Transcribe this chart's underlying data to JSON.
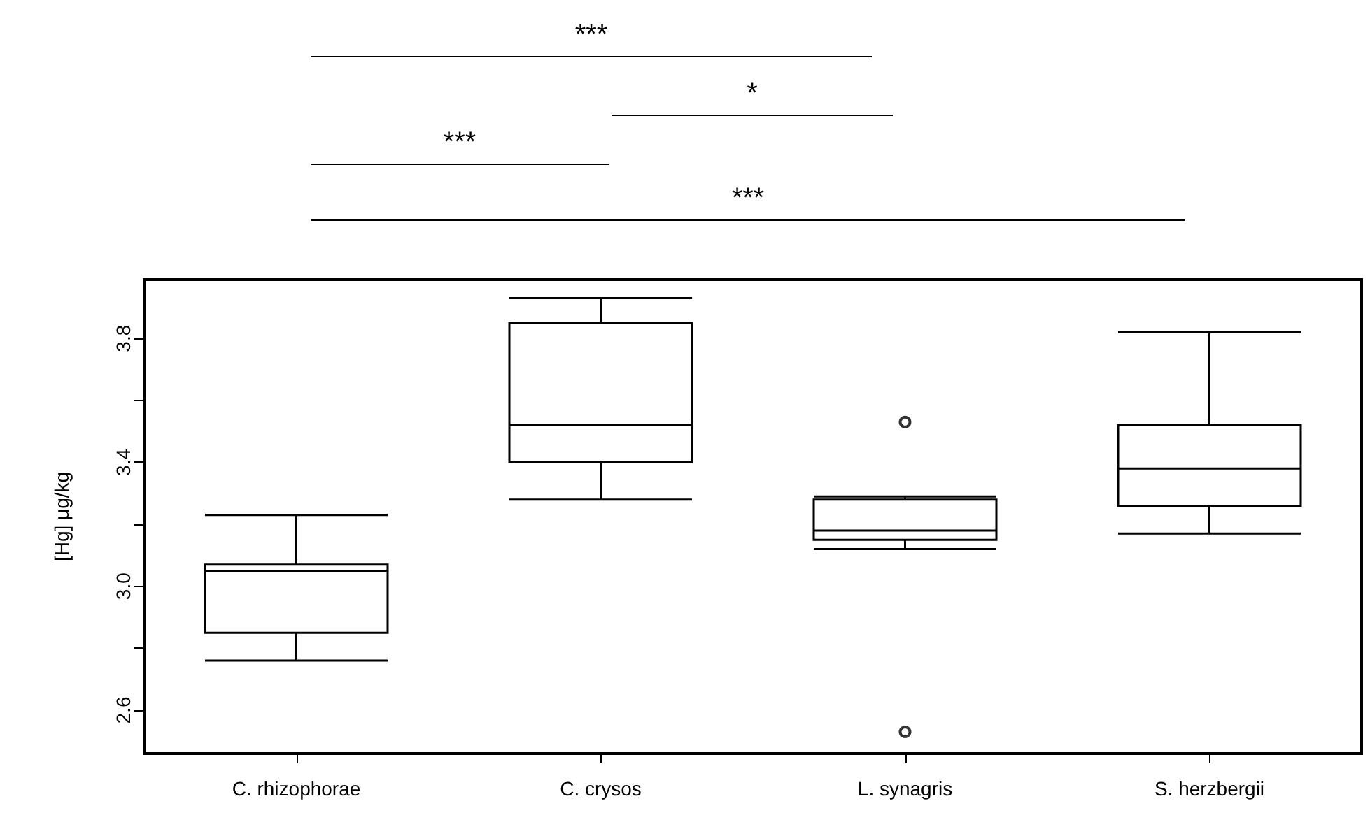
{
  "chart_data": {
    "type": "box",
    "ylabel": "[Hg] μg/kg",
    "categories": [
      "C. rhizophorae",
      "C. crysos",
      "L. synagris",
      "S. herzbergii"
    ],
    "boxes": [
      {
        "low": 2.76,
        "q1": 2.85,
        "median": 3.05,
        "q3": 3.07,
        "high": 3.23
      },
      {
        "low": 3.28,
        "q1": 3.4,
        "median": 3.52,
        "q3": 3.85,
        "high": 3.93
      },
      {
        "low": 3.12,
        "q1": 3.15,
        "median": 3.18,
        "q3": 3.28,
        "high": 3.29,
        "outliers": [
          3.53,
          2.53
        ]
      },
      {
        "low": 3.17,
        "q1": 3.26,
        "median": 3.38,
        "q3": 3.52,
        "high": 3.82
      }
    ],
    "ylim": [
      2.46,
      3.99
    ],
    "yticks": [
      2.6,
      {
        "value": 2.8,
        "label": null
      },
      {
        "value": 3.0,
        "label": "3.0"
      },
      {
        "value": 3.2,
        "label": null
      },
      3.4,
      {
        "value": 3.6,
        "label": null
      },
      3.8
    ],
    "annotations": [
      "***",
      "*",
      "***",
      "***"
    ]
  }
}
